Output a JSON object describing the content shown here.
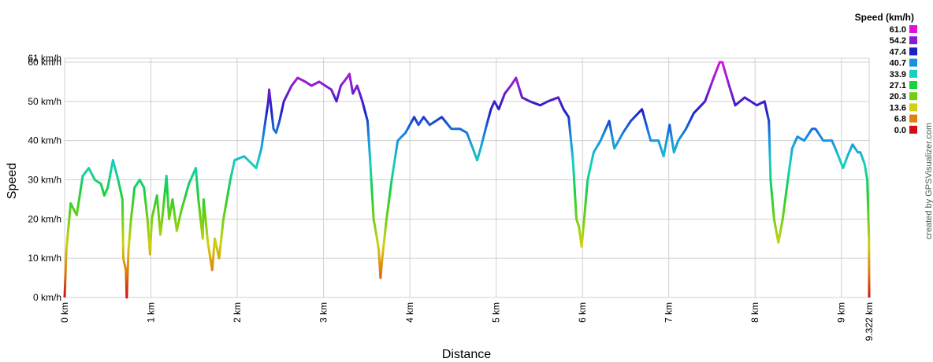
{
  "chart_data": {
    "type": "line",
    "x_label": "Distance",
    "y_label": "Speed",
    "credit": "created by GPSVisualizer.com",
    "x": [
      0,
      0.02,
      0.07,
      0.14,
      0.21,
      0.28,
      0.35,
      0.42,
      0.46,
      0.5,
      0.56,
      0.62,
      0.67,
      0.68,
      0.71,
      0.72,
      0.74,
      0.77,
      0.81,
      0.87,
      0.92,
      0.96,
      0.99,
      1.01,
      1.07,
      1.11,
      1.14,
      1.18,
      1.21,
      1.25,
      1.3,
      1.35,
      1.44,
      1.52,
      1.55,
      1.6,
      1.61,
      1.66,
      1.71,
      1.74,
      1.79,
      1.84,
      1.92,
      1.97,
      2.08,
      2.22,
      2.28,
      2.36,
      2.37,
      2.42,
      2.45,
      2.49,
      2.54,
      2.63,
      2.7,
      2.79,
      2.86,
      2.95,
      3.09,
      3.15,
      3.2,
      3.27,
      3.3,
      3.34,
      3.39,
      3.45,
      3.51,
      3.54,
      3.58,
      3.62,
      3.64,
      3.66,
      3.68,
      3.73,
      3.79,
      3.86,
      3.95,
      4.05,
      4.1,
      4.16,
      4.23,
      4.37,
      4.48,
      4.58,
      4.66,
      4.73,
      4.78,
      4.82,
      4.89,
      4.94,
      4.98,
      5.03,
      5.1,
      5.17,
      5.23,
      5.3,
      5.39,
      5.51,
      5.6,
      5.72,
      5.78,
      5.84,
      5.89,
      5.93,
      5.96,
      5.99,
      6.02,
      6.06,
      6.13,
      6.21,
      6.31,
      6.37,
      6.47,
      6.56,
      6.69,
      6.79,
      6.88,
      6.94,
      7.01,
      7.06,
      7.11,
      7.2,
      7.29,
      7.42,
      7.52,
      7.59,
      7.62,
      7.7,
      7.77,
      7.88,
      8.02,
      8.11,
      8.16,
      8.18,
      8.22,
      8.27,
      8.32,
      8.38,
      8.43,
      8.49,
      8.57,
      8.66,
      8.7,
      8.79,
      8.89,
      8.93,
      9.02,
      9.07,
      9.13,
      9.19,
      9.22,
      9.27,
      9.3,
      9.32,
      9.322
    ],
    "values": [
      0,
      12,
      24,
      21,
      31,
      33,
      30,
      29,
      26,
      28,
      35,
      30,
      25,
      10,
      7,
      0,
      12,
      20,
      28,
      30,
      28,
      20,
      11,
      20,
      26,
      16,
      22,
      31,
      20,
      25,
      17,
      22,
      29,
      33,
      25,
      15,
      25,
      14,
      7,
      15,
      10,
      20,
      30,
      35,
      36,
      33,
      38,
      50,
      53,
      43,
      42,
      45,
      50,
      54,
      56,
      55,
      54,
      55,
      53,
      50,
      54,
      56,
      57,
      52,
      54,
      50,
      45,
      35,
      20,
      15,
      12,
      5,
      10,
      20,
      30,
      40,
      42,
      46,
      44,
      46,
      44,
      46,
      43,
      43,
      42,
      38,
      35,
      38,
      44,
      48,
      50,
      48,
      52,
      54,
      56,
      51,
      50,
      49,
      50,
      51,
      48,
      46,
      35,
      20,
      18,
      13,
      20,
      30,
      37,
      40,
      45,
      38,
      42,
      45,
      48,
      40,
      40,
      36,
      44,
      37,
      40,
      43,
      47,
      50,
      56,
      60,
      60,
      54,
      49,
      51,
      49,
      50,
      45,
      30,
      20,
      14,
      20,
      30,
      38,
      41,
      40,
      43,
      43,
      40,
      40,
      38,
      33,
      36,
      39,
      37,
      37,
      34,
      30,
      15,
      0
    ],
    "xlim": [
      0,
      9.322
    ],
    "xticks": [
      {
        "value": 0,
        "label": "0 km"
      },
      {
        "value": 1,
        "label": "1 km"
      },
      {
        "value": 2,
        "label": "2 km"
      },
      {
        "value": 3,
        "label": "3 km"
      },
      {
        "value": 4,
        "label": "4 km"
      },
      {
        "value": 5,
        "label": "5 km"
      },
      {
        "value": 6,
        "label": "6 km"
      },
      {
        "value": 7,
        "label": "7 km"
      },
      {
        "value": 8,
        "label": "8 km"
      },
      {
        "value": 9,
        "label": "9 km"
      },
      {
        "value": 9.322,
        "label": "9.322 km"
      }
    ],
    "ylim": [
      0,
      61
    ],
    "yticks": [
      {
        "value": 0,
        "label": "0 km/h"
      },
      {
        "value": 10,
        "label": "10 km/h"
      },
      {
        "value": 20,
        "label": "20 km/h"
      },
      {
        "value": 30,
        "label": "30 km/h"
      },
      {
        "value": 40,
        "label": "40 km/h"
      },
      {
        "value": 50,
        "label": "50 km/h"
      },
      {
        "value": 60,
        "label": "60 km/h"
      },
      {
        "value": 61,
        "label": "61 km/h"
      }
    ],
    "grid": true,
    "color_scale": {
      "title": "Speed (km/h)",
      "stops": [
        {
          "value": 61,
          "label": "61.0",
          "color": "#e010e0"
        },
        {
          "value": 54.2,
          "label": "54.2",
          "color": "#8a1cd0"
        },
        {
          "value": 47.4,
          "label": "47.4",
          "color": "#1c20c8"
        },
        {
          "value": 40.7,
          "label": "40.7",
          "color": "#1890e0"
        },
        {
          "value": 33.9,
          "label": "33.9",
          "color": "#18d0c0"
        },
        {
          "value": 27.1,
          "label": "27.1",
          "color": "#18d040"
        },
        {
          "value": 20.3,
          "label": "20.3",
          "color": "#70d010"
        },
        {
          "value": 13.6,
          "label": "13.6",
          "color": "#d0d010"
        },
        {
          "value": 6.8,
          "label": "6.8",
          "color": "#e08010"
        },
        {
          "value": 0,
          "label": "0.0",
          "color": "#d01010"
        }
      ]
    }
  }
}
